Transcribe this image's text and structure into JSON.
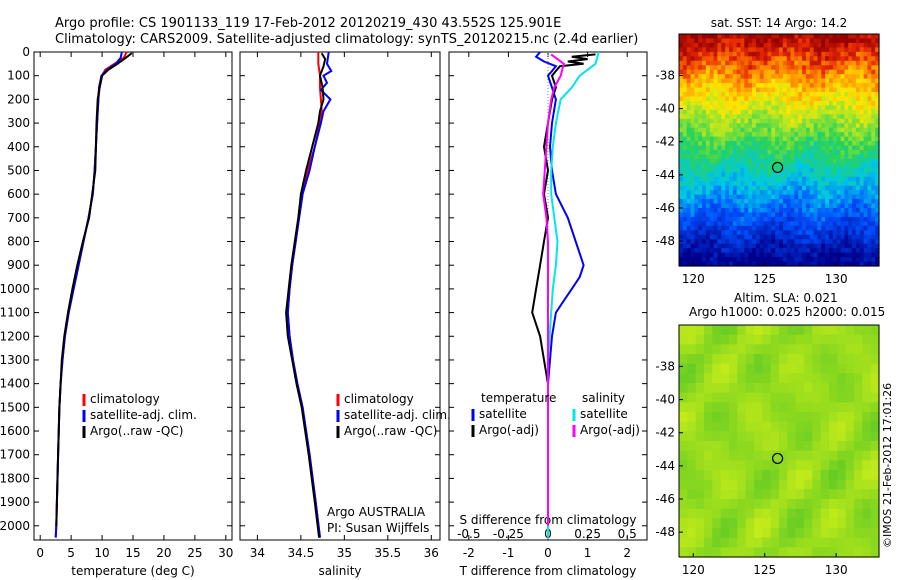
{
  "header": {
    "line1": "Argo profile: CS 1901133_119 17-Feb-2012 20120219_430 43.552S 125.901E",
    "line2": "Climatology: CARS2009. Satellite-adjusted climatology: synTS_20120215.nc (2.4d earlier)"
  },
  "side_label": "©IMOS 21-Feb-2012 17:01:26",
  "colors": {
    "climatology": "#ff0000",
    "satellite": "#0000ff",
    "argo": "#000000",
    "sal_satellite": "#00e5ee",
    "sal_argo": "#ff00ff"
  },
  "chart_data": [
    {
      "type": "line",
      "xlabel": "temperature (deg C)",
      "ylabel": "",
      "xlim": [
        -1,
        31
      ],
      "ylim": [
        2060,
        0
      ],
      "xticks": [
        0,
        5,
        10,
        15,
        20,
        25,
        30
      ],
      "yticks": [
        0,
        100,
        200,
        300,
        400,
        500,
        600,
        700,
        800,
        900,
        1000,
        1100,
        1200,
        1300,
        1400,
        1500,
        1600,
        1700,
        1800,
        1900,
        2000
      ],
      "legend": [
        "climatology",
        "satellite-adj. clim.",
        "Argo(..raw -QC)"
      ],
      "legend_position": "lower-right",
      "series": [
        {
          "name": "climatology",
          "color": "#ff0000",
          "depth": [
            0,
            25,
            50,
            75,
            100,
            150,
            200,
            300,
            400,
            500,
            600,
            700,
            800,
            900,
            1000,
            1100,
            1200,
            1300,
            1400,
            1500,
            1700,
            2000,
            2050
          ],
          "values": [
            14.0,
            13.5,
            12.0,
            10.5,
            10.0,
            9.6,
            9.4,
            9.2,
            9.0,
            8.8,
            8.5,
            7.8,
            7.0,
            6.2,
            5.4,
            4.6,
            4.0,
            3.6,
            3.3,
            3.1,
            2.9,
            2.6,
            2.5
          ]
        },
        {
          "name": "satellite-adj. clim.",
          "color": "#0000ff",
          "depth": [
            0,
            25,
            50,
            75,
            100,
            150,
            200,
            300,
            400,
            500,
            600,
            700,
            800,
            900,
            1000,
            1100,
            1200,
            1300,
            1400,
            1500,
            1700,
            2000,
            2050
          ],
          "values": [
            13.2,
            13.0,
            12.2,
            10.8,
            9.9,
            9.5,
            9.4,
            9.2,
            9.0,
            8.8,
            8.5,
            7.8,
            7.0,
            6.2,
            5.4,
            4.6,
            4.0,
            3.6,
            3.3,
            3.1,
            2.9,
            2.6,
            2.5
          ]
        },
        {
          "name": "Argo(..raw -QC)",
          "color": "#000000",
          "depth": [
            5,
            25,
            50,
            75,
            100,
            150,
            200,
            300,
            400,
            500,
            600,
            700,
            800,
            900,
            1000,
            1100,
            1200,
            1300,
            1400,
            1500,
            1700,
            2000
          ],
          "values": [
            14.8,
            13.8,
            12.5,
            11.0,
            10.0,
            9.6,
            9.3,
            9.1,
            9.0,
            8.9,
            8.4,
            7.9,
            6.9,
            6.0,
            5.2,
            4.5,
            3.9,
            3.5,
            3.3,
            3.1,
            2.9,
            2.6
          ]
        }
      ]
    },
    {
      "type": "line",
      "xlabel": "salinity",
      "ylabel": "",
      "xlim": [
        33.8,
        36.1
      ],
      "ylim": [
        2060,
        0
      ],
      "xticks": [
        34,
        34.5,
        35,
        35.5,
        36
      ],
      "legend": [
        "climatology",
        "satellite-adj. clim.",
        "Argo(..raw -QC)"
      ],
      "legend_position": "lower-right",
      "annotation": [
        "Argo AUSTRALIA",
        "PI: Susan Wijffels"
      ],
      "series": [
        {
          "name": "climatology",
          "color": "#ff0000",
          "depth": [
            0,
            50,
            100,
            150,
            200,
            250,
            300,
            400,
            500,
            600,
            700,
            800,
            900,
            1000,
            1100,
            1200,
            1300,
            1400,
            1500,
            1700,
            1900,
            2050
          ],
          "values": [
            34.7,
            34.7,
            34.72,
            34.72,
            34.73,
            34.74,
            34.72,
            34.66,
            34.58,
            34.52,
            34.48,
            34.44,
            34.4,
            34.37,
            34.35,
            34.37,
            34.41,
            34.46,
            34.52,
            34.6,
            34.67,
            34.72
          ]
        },
        {
          "name": "satellite-adj. clim.",
          "color": "#0000ff",
          "depth": [
            0,
            50,
            80,
            100,
            130,
            160,
            200,
            250,
            300,
            400,
            500,
            600,
            700,
            800,
            900,
            1000,
            1100,
            1200,
            1300,
            1400,
            1500,
            1700,
            1900,
            2050
          ],
          "values": [
            34.82,
            34.8,
            34.85,
            34.76,
            34.8,
            34.73,
            34.84,
            34.76,
            34.73,
            34.66,
            34.6,
            34.52,
            34.48,
            34.44,
            34.4,
            34.37,
            34.35,
            34.37,
            34.41,
            34.46,
            34.52,
            34.6,
            34.67,
            34.72
          ]
        },
        {
          "name": "Argo(..raw -QC)",
          "color": "#000000",
          "depth": [
            5,
            30,
            60,
            100,
            150,
            200,
            250,
            300,
            400,
            500,
            600,
            700,
            800,
            900,
            1000,
            1100,
            1200,
            1300,
            1400,
            1500,
            1700,
            1900,
            2050
          ],
          "values": [
            34.74,
            34.78,
            34.76,
            34.72,
            34.75,
            34.76,
            34.72,
            34.7,
            34.63,
            34.56,
            34.5,
            34.47,
            34.43,
            34.39,
            34.36,
            34.33,
            34.35,
            34.4,
            34.45,
            34.51,
            34.59,
            34.66,
            34.71
          ]
        }
      ]
    },
    {
      "type": "line",
      "xlabel": "T difference from climatology",
      "title_bottom": "S difference from climatology",
      "xlim": [
        -2.5,
        2.5
      ],
      "ylim": [
        2060,
        0
      ],
      "xticks": [
        -2,
        -1,
        0,
        1,
        2
      ],
      "xticks_top": [
        -0.5,
        -0.25,
        0,
        0.25,
        0.5
      ],
      "legend_groups": [
        {
          "title": "temperature",
          "items": [
            "satellite",
            "Argo(-adj)"
          ]
        },
        {
          "title": "salinity",
          "items": [
            "satellite",
            "Argo(-adj)"
          ]
        }
      ],
      "series": [
        {
          "name": "temperature satellite",
          "color": "#0000ff",
          "depth": [
            0,
            20,
            40,
            60,
            80,
            100,
            150,
            200,
            300,
            400,
            500,
            600,
            700,
            800,
            850,
            900,
            950,
            1000,
            1050,
            1100,
            1200,
            1300,
            1400,
            1500,
            1700,
            2050
          ],
          "values": [
            -0.2,
            -0.3,
            -0.1,
            0.2,
            0.1,
            0.0,
            0.1,
            0.2,
            0.1,
            0.05,
            0.1,
            0.2,
            0.5,
            0.7,
            0.8,
            0.9,
            0.8,
            0.6,
            0.4,
            0.2,
            0.1,
            0.05,
            0.0,
            0.0,
            0.0,
            0.0
          ]
        },
        {
          "name": "temperature Argo(-adj)",
          "color": "#000000",
          "depth": [
            10,
            20,
            30,
            40,
            50,
            60,
            80,
            100,
            150,
            200,
            300,
            400,
            500,
            600,
            700,
            800,
            900,
            1000,
            1100,
            1200,
            1300,
            1400,
            1500,
            1700,
            2000
          ],
          "values": [
            1.2,
            0.6,
            1.0,
            0.5,
            0.9,
            0.3,
            0.2,
            0.1,
            0.2,
            0.1,
            0.0,
            -0.1,
            0.0,
            -0.1,
            0.0,
            -0.1,
            -0.2,
            -0.3,
            -0.4,
            -0.2,
            -0.1,
            0.0,
            0.0,
            0.0,
            0.0
          ]
        },
        {
          "name": "salinity satellite",
          "color": "#00e5ee",
          "depth": [
            0,
            50,
            100,
            150,
            200,
            300,
            400,
            500,
            600,
            700,
            800,
            900,
            1000,
            1100,
            1200,
            1300,
            1400,
            1600,
            1800,
            2050
          ],
          "values": [
            0.32,
            0.3,
            0.2,
            0.15,
            0.08,
            0.05,
            0.03,
            0.02,
            0.02,
            0.04,
            0.06,
            0.05,
            0.03,
            0.02,
            0.01,
            0.0,
            0.0,
            0.0,
            0.0,
            0.0
          ]
        },
        {
          "name": "salinity Argo(-adj)",
          "color": "#ff00ff",
          "depth": [
            10,
            50,
            100,
            150,
            200,
            300,
            400,
            500,
            600,
            700,
            800,
            900,
            1000,
            1200,
            1400,
            1600,
            1800,
            2000
          ],
          "values": [
            0.02,
            0.1,
            0.08,
            0.04,
            0.02,
            0.0,
            -0.01,
            -0.02,
            -0.03,
            -0.01,
            0.0,
            0.0,
            0.0,
            0.0,
            0.0,
            0.0,
            0.0,
            0.0
          ]
        }
      ]
    },
    {
      "type": "heatmap",
      "title": "sat. SST: 14  Argo: 14.2",
      "xlim": [
        119,
        133
      ],
      "ylim": [
        -49.5,
        -35.5
      ],
      "xticks": [
        120,
        125,
        130
      ],
      "yticks": [
        -38,
        -40,
        -42,
        -44,
        -46,
        -48
      ],
      "marker": {
        "lon": 125.901,
        "lat": -43.552
      }
    },
    {
      "type": "heatmap",
      "title": "Altim. SLA: 0.021",
      "subtitle": "Argo h1000: 0.025 h2000: 0.015",
      "xlim": [
        119,
        133
      ],
      "ylim": [
        -49.5,
        -35.5
      ],
      "xticks": [
        120,
        125,
        130
      ],
      "yticks": [
        -38,
        -40,
        -42,
        -44,
        -46,
        -48
      ],
      "marker": {
        "lon": 125.901,
        "lat": -43.552
      }
    }
  ]
}
